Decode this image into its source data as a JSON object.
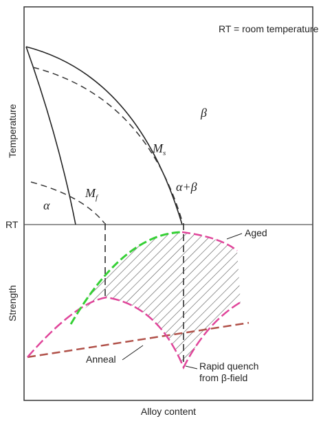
{
  "note_box": "RT = room temperature",
  "axes": {
    "upper_y": "Temperature",
    "lower_y": "Strength",
    "x": "Alloy content",
    "rt": "RT"
  },
  "phases": {
    "beta": "β",
    "alpha_beta": "α+β",
    "alpha": "α",
    "ms": {
      "main": "M",
      "sub": "s"
    },
    "mf": {
      "main": "M",
      "sub": "f"
    }
  },
  "curves": {
    "aged": "Aged",
    "anneal": "Anneal",
    "quench": [
      "Rapid quench",
      "from β-field"
    ]
  }
}
